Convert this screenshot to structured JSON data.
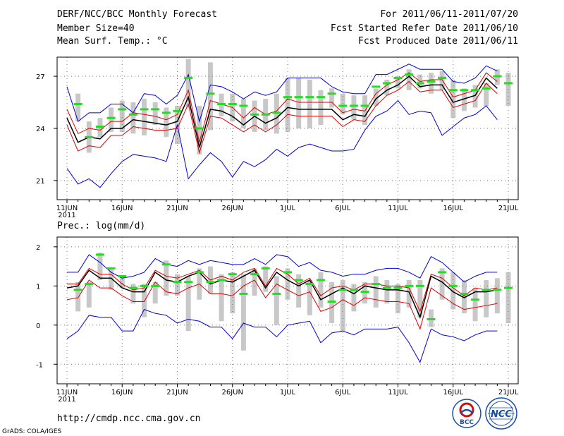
{
  "header": {
    "title": "DERF/NCC/BCC Monthly Forecast",
    "member_size": "Member Size=40",
    "variable": "Mean Surf. Temp.: °C",
    "period": "For 2011/06/11-2011/07/20",
    "started": "Fcst Started Refer Date 2011/06/10",
    "produced": "Fcst Produced Date 2011/06/11"
  },
  "footer": {
    "url": "http://cmdp.ncc.cma.gov.cn",
    "grads": "GrADS: COLA/IGES",
    "logo_bcc": "BCC",
    "logo_ncc": "NCC"
  },
  "colors": {
    "mean": "#000000",
    "envelope": "#0000dd",
    "sd": "#dd0000",
    "median": "#22dd22",
    "box": "#c8c8c8",
    "grid": "#777777"
  },
  "chart_data": [
    {
      "type": "line",
      "title": "Mean Surf. Temp.: °C",
      "x_ticks": [
        "11JUN",
        "16JUN",
        "21JUN",
        "26JUN",
        "1JUL",
        "6JUL",
        "11JUL",
        "16JUL",
        "21JUL"
      ],
      "x_tick_index": [
        0,
        5,
        10,
        15,
        20,
        25,
        30,
        35,
        40
      ],
      "x_sub": "2011",
      "ylim": [
        19.9,
        28.1
      ],
      "yticks": [
        21,
        24,
        27
      ],
      "yticklabels": [
        "21",
        "24",
        "27"
      ],
      "series": [
        {
          "name": "max",
          "values": [
            26.4,
            24.4,
            24.9,
            24.9,
            25.4,
            25.4,
            24.9,
            26.0,
            25.9,
            25.4,
            25.9,
            27.1,
            24.4,
            26.5,
            26.4,
            26.1,
            25.7,
            26.1,
            25.9,
            26.1,
            26.9,
            26.9,
            26.9,
            26.9,
            26.4,
            26.1,
            26.0,
            26.0,
            27.1,
            27.1,
            27.4,
            27.7,
            27.4,
            27.4,
            27.4,
            26.7,
            26.6,
            26.9,
            27.6,
            27.3
          ]
        },
        {
          "name": "plus_sd",
          "values": [
            25.1,
            23.7,
            24.0,
            23.9,
            24.4,
            24.4,
            24.9,
            24.8,
            24.7,
            24.5,
            24.8,
            26.2,
            23.2,
            25.6,
            25.4,
            25.2,
            24.6,
            25.2,
            24.8,
            25.0,
            25.7,
            25.5,
            25.5,
            25.5,
            25.5,
            24.9,
            25.1,
            25.0,
            26.0,
            26.5,
            26.8,
            27.2,
            26.7,
            26.8,
            26.8,
            25.8,
            26.0,
            26.2,
            27.2,
            26.7
          ]
        },
        {
          "name": "mean",
          "values": [
            24.6,
            23.2,
            23.5,
            23.4,
            24.0,
            24.0,
            24.5,
            24.4,
            24.3,
            24.2,
            24.4,
            25.8,
            22.9,
            25.1,
            25.0,
            24.7,
            24.2,
            24.7,
            24.3,
            24.6,
            25.2,
            25.1,
            25.1,
            25.1,
            25.1,
            24.5,
            24.8,
            24.7,
            25.7,
            26.2,
            26.5,
            27.0,
            26.4,
            26.5,
            26.5,
            25.5,
            25.7,
            25.9,
            26.9,
            26.3
          ]
        },
        {
          "name": "minus_sd",
          "values": [
            24.2,
            22.7,
            23.0,
            22.9,
            23.6,
            23.6,
            24.1,
            24.0,
            23.9,
            23.9,
            24.0,
            25.4,
            22.6,
            24.7,
            24.6,
            24.2,
            23.8,
            24.2,
            23.8,
            24.2,
            24.8,
            24.7,
            24.7,
            24.7,
            24.7,
            24.1,
            24.5,
            24.4,
            25.3,
            25.9,
            26.2,
            26.7,
            26.1,
            26.2,
            26.2,
            25.2,
            25.4,
            25.6,
            26.6,
            26.0
          ]
        },
        {
          "name": "min",
          "values": [
            21.7,
            20.8,
            21.1,
            20.6,
            21.4,
            22.1,
            22.5,
            22.4,
            22.3,
            22.1,
            24.2,
            21.1,
            21.9,
            22.6,
            22.1,
            21.2,
            22.1,
            21.8,
            22.2,
            22.8,
            22.4,
            22.9,
            23.1,
            22.9,
            22.7,
            22.7,
            22.8,
            23.9,
            24.7,
            25.0,
            25.6,
            24.8,
            25.0,
            24.9,
            23.6,
            24.1,
            24.6,
            24.8,
            25.3,
            24.5
          ]
        },
        {
          "name": "median",
          "values": [
            25.4,
            23.5,
            24.1,
            24.6,
            25.1,
            24.8,
            25.1,
            25.1,
            24.9,
            25.0,
            26.9,
            24.0,
            26.0,
            25.4,
            25.4,
            25.3,
            24.8,
            24.8,
            24.9,
            25.8,
            25.8,
            25.8,
            25.8,
            26.0,
            25.3,
            25.3,
            25.3,
            26.4,
            26.6,
            26.9,
            27.1,
            26.6,
            26.7,
            26.9,
            26.2,
            26.2,
            26.2,
            26.3,
            27.0,
            26.6
          ]
        },
        {
          "name": "box_upper",
          "values": [
            26.0,
            24.4,
            24.6,
            25.2,
            25.6,
            25.5,
            25.7,
            25.5,
            25.2,
            25.3,
            28.0,
            25.3,
            27.8,
            26.0,
            26.0,
            25.7,
            25.6,
            25.7,
            26.0,
            26.9,
            26.9,
            26.8,
            26.2,
            26.3,
            26.0,
            25.9,
            25.9,
            26.3,
            26.8,
            27.0,
            27.4,
            27.1,
            27.2,
            27.3,
            26.8,
            26.3,
            26.5,
            26.6,
            27.4,
            27.2
          ]
        },
        {
          "name": "box_lower",
          "values": [
            24.4,
            22.6,
            23.5,
            23.8,
            23.8,
            23.7,
            23.6,
            24.2,
            23.5,
            23.1,
            25.2,
            22.5,
            23.9,
            24.7,
            24.4,
            24.0,
            23.8,
            23.9,
            23.7,
            23.8,
            24.0,
            24.0,
            24.2,
            25.2,
            24.8,
            24.5,
            24.2,
            25.3,
            25.9,
            26.3,
            26.2,
            26.3,
            26.0,
            26.2,
            24.6,
            25.0,
            25.2,
            25.3,
            26.5,
            25.3
          ]
        }
      ]
    },
    {
      "type": "line",
      "title": "Prec.: log(mm/d)",
      "x_ticks": [
        "11JUN",
        "16JUN",
        "21JUN",
        "26JUN",
        "1JUL",
        "6JUL",
        "11JUL",
        "16JUL",
        "21JUL"
      ],
      "x_tick_index": [
        0,
        5,
        10,
        15,
        20,
        25,
        30,
        35,
        40
      ],
      "x_sub": "2011",
      "ylim": [
        -1.5,
        2.25
      ],
      "yticks": [
        -1,
        0,
        1,
        2
      ],
      "yticklabels": [
        "-1",
        "0",
        "1",
        "2"
      ],
      "series": [
        {
          "name": "max",
          "values": [
            1.35,
            1.35,
            1.8,
            1.6,
            1.35,
            1.2,
            1.25,
            1.35,
            1.7,
            1.55,
            1.5,
            1.65,
            1.55,
            1.65,
            1.6,
            1.55,
            1.55,
            1.7,
            1.55,
            1.8,
            1.75,
            1.5,
            1.6,
            1.4,
            1.35,
            1.25,
            1.3,
            1.3,
            1.4,
            1.45,
            1.45,
            1.35,
            1.2,
            1.75,
            1.6,
            1.35,
            1.1,
            1.25,
            1.35,
            1.35
          ]
        },
        {
          "name": "plus_sd",
          "values": [
            1.05,
            1.05,
            1.45,
            1.3,
            1.3,
            1.05,
            0.9,
            0.95,
            1.4,
            1.25,
            1.2,
            1.3,
            1.4,
            1.15,
            1.25,
            1.15,
            1.35,
            1.45,
            1.0,
            1.45,
            1.3,
            1.05,
            1.2,
            0.75,
            0.95,
            1.0,
            0.9,
            1.05,
            1.05,
            1.0,
            1.0,
            0.95,
            0.35,
            1.3,
            1.2,
            0.95,
            0.75,
            0.95,
            0.9,
            0.95
          ]
        },
        {
          "name": "mean",
          "values": [
            0.95,
            1.0,
            1.4,
            1.2,
            1.2,
            0.95,
            0.85,
            0.85,
            1.35,
            1.15,
            1.1,
            1.25,
            1.35,
            1.05,
            1.15,
            1.1,
            1.25,
            1.4,
            0.95,
            1.35,
            1.15,
            1.0,
            1.15,
            0.65,
            0.8,
            0.95,
            0.8,
            1.0,
            0.95,
            0.9,
            0.9,
            0.85,
            0.2,
            1.25,
            1.1,
            0.85,
            0.7,
            0.85,
            0.85,
            0.9
          ]
        },
        {
          "name": "minus_sd",
          "values": [
            0.65,
            0.7,
            1.15,
            0.95,
            0.95,
            0.75,
            0.6,
            0.6,
            1.1,
            0.85,
            0.8,
            0.95,
            1.05,
            0.8,
            0.8,
            0.75,
            1.0,
            1.15,
            0.7,
            1.05,
            0.9,
            0.75,
            0.85,
            0.35,
            0.45,
            0.65,
            0.5,
            0.7,
            0.65,
            0.6,
            0.6,
            0.55,
            -0.1,
            0.95,
            0.75,
            0.55,
            0.4,
            0.45,
            0.5,
            0.55
          ]
        },
        {
          "name": "min",
          "values": [
            -0.35,
            -0.15,
            0.25,
            0.2,
            0.2,
            -0.15,
            -0.15,
            0.4,
            0.3,
            0.25,
            0.05,
            0.15,
            0.1,
            -0.05,
            -0.05,
            -0.35,
            0.05,
            -0.05,
            -0.05,
            -0.3,
            0.0,
            0.05,
            0.1,
            -0.45,
            -0.2,
            -0.15,
            -0.25,
            -0.1,
            -0.1,
            -0.1,
            -0.05,
            -0.45,
            -0.95,
            -0.1,
            -0.25,
            -0.3,
            -0.4,
            -0.25,
            -0.15,
            -0.15
          ]
        },
        {
          "name": "median",
          "values": [
            0.9,
            1.05,
            1.8,
            1.45,
            1.25,
            0.95,
            1.0,
            1.0,
            1.55,
            1.1,
            1.1,
            1.35,
            1.1,
            1.15,
            1.3,
            0.8,
            1.3,
            1.45,
            0.8,
            1.35,
            1.15,
            1.05,
            1.15,
            0.6,
            0.9,
            0.9,
            0.85,
            1.05,
            0.95,
            0.95,
            1.0,
            1.0,
            0.15,
            1.35,
            1.0,
            0.8,
            0.65,
            0.9,
            0.9,
            0.95
          ]
        },
        {
          "name": "box_upper",
          "values": [
            1.1,
            1.1,
            1.85,
            1.45,
            1.25,
            1.05,
            1.05,
            1.1,
            1.65,
            1.3,
            1.25,
            1.45,
            1.5,
            1.3,
            1.35,
            1.3,
            1.45,
            1.5,
            1.25,
            1.45,
            1.3,
            1.15,
            1.35,
            1.1,
            1.15,
            1.05,
            1.1,
            1.25,
            1.15,
            1.05,
            1.15,
            1.15,
            0.4,
            1.45,
            1.35,
            1.15,
            0.95,
            1.15,
            1.2,
            1.35
          ]
        },
        {
          "name": "box_lower",
          "values": [
            0.35,
            0.45,
            1.15,
            0.9,
            0.95,
            0.55,
            0.2,
            0.55,
            0.75,
            0.75,
            -0.15,
            0.65,
            0.8,
            0.1,
            0.3,
            -0.65,
            0.75,
            0.85,
            0.0,
            0.65,
            0.45,
            0.25,
            0.45,
            0.05,
            -0.15,
            0.35,
            0.55,
            0.45,
            0.55,
            0.3,
            0.45,
            0.2,
            -0.05,
            0.65,
            0.4,
            0.3,
            0.1,
            0.2,
            0.3,
            0.05
          ]
        }
      ]
    }
  ]
}
